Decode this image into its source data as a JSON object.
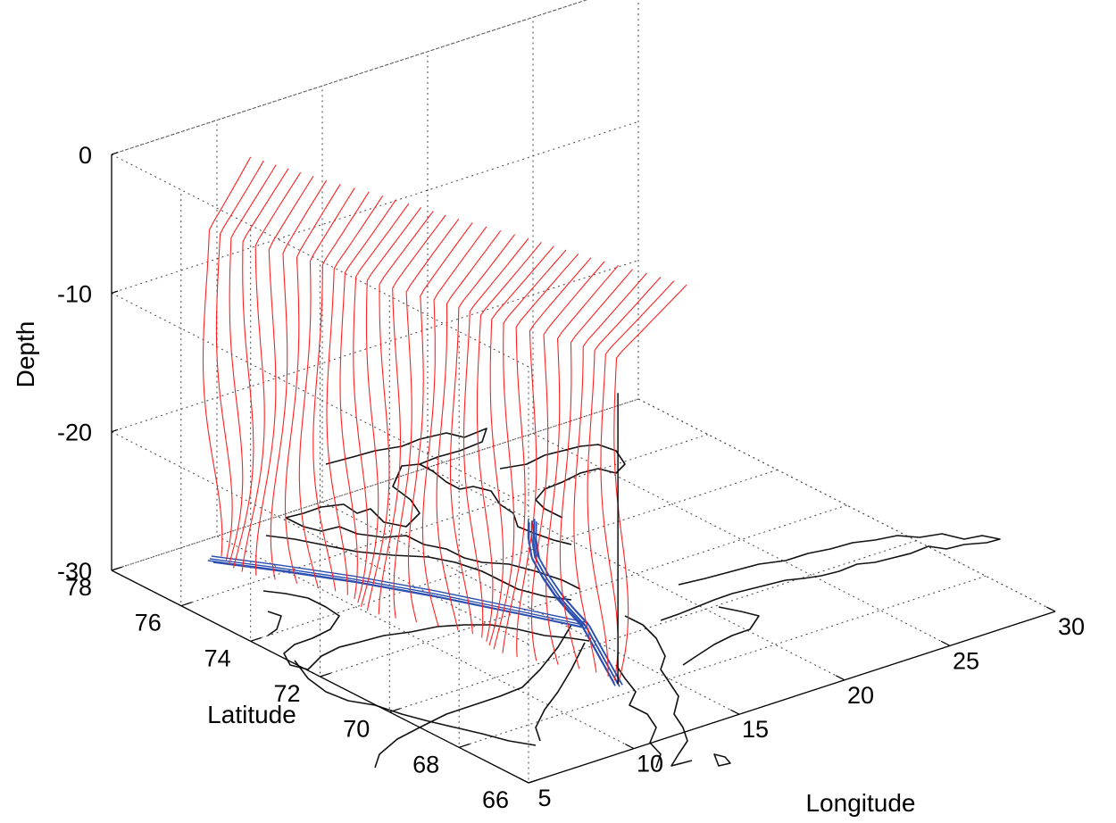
{
  "chart_data": {
    "type": "3d-line",
    "title": "",
    "xlabel": "Longitude",
    "ylabel": "Latitude",
    "zlabel": "Depth",
    "xlim": [
      5,
      30
    ],
    "ylim": [
      66,
      78
    ],
    "zlim": [
      -30,
      0
    ],
    "x_ticks": [
      "5",
      "10",
      "15",
      "20",
      "25",
      "30"
    ],
    "y_ticks": [
      "66",
      "68",
      "70",
      "72",
      "74",
      "76",
      "78"
    ],
    "z_ticks": [
      "0",
      "-10",
      "-20",
      "-30"
    ],
    "grid": true,
    "colors": {
      "profiles": "#ff2020",
      "track": "#2a4fb0",
      "coastline": "#111111",
      "mooring": "#000000"
    },
    "mooring": {
      "lon": 13.2,
      "lat": 68.4,
      "depth_top": -9,
      "depth_bottom": -30
    },
    "track": [
      [
        13.2,
        68.4
      ],
      [
        13.8,
        69.0
      ],
      [
        14.4,
        69.6
      ],
      [
        15.0,
        70.2
      ],
      [
        15.6,
        70.8
      ],
      [
        16.0,
        71.4
      ],
      [
        16.5,
        72.1
      ],
      [
        17.2,
        72.9
      ],
      [
        18.0,
        73.7
      ],
      [
        19.0,
        74.4
      ],
      [
        20.0,
        75.0
      ]
    ],
    "track_branch_west": [
      [
        15.6,
        70.8
      ],
      [
        14.5,
        72.0
      ],
      [
        13.0,
        73.6
      ],
      [
        11.5,
        75.0
      ],
      [
        10.0,
        76.2
      ],
      [
        8.5,
        77.3
      ]
    ],
    "profiles": {
      "count": 34,
      "start": {
        "lon": 13.2,
        "lat": 68.4
      },
      "end": {
        "lon": 8.6,
        "lat": 77.4
      },
      "depth_top": -1.2,
      "depth_bottom": -30
    }
  }
}
